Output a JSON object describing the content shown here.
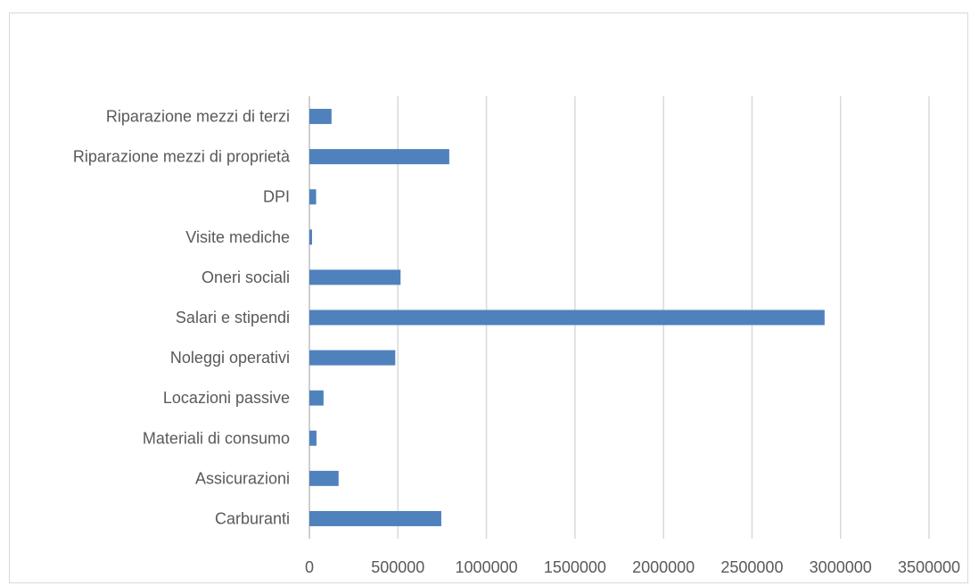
{
  "chart_data": {
    "type": "bar",
    "orientation": "horizontal",
    "categories": [
      "Carburanti",
      "Assicurazioni",
      "Materiali di consumo",
      "Locazioni passive",
      "Noleggi operativi",
      "Salari e stipendi",
      "Oneri sociali",
      "Visite mediche",
      "DPI",
      "Riparazione mezzi di proprietà",
      "Riparazione mezzi di terzi"
    ],
    "values": [
      745000,
      165000,
      40000,
      80000,
      485000,
      2910000,
      515000,
      15000,
      38000,
      790000,
      125000
    ],
    "xlim": [
      0,
      3500000
    ],
    "xticks": [
      "0",
      "500000",
      "1000000",
      "1500000",
      "2000000",
      "2500000",
      "3000000",
      "3500000"
    ],
    "xtick_values": [
      0,
      500000,
      1000000,
      1500000,
      2000000,
      2500000,
      3000000,
      3500000
    ],
    "title": "",
    "xlabel": "",
    "ylabel": "",
    "grid": "vertical",
    "bar_color": "#4f81bd",
    "gridline_color": "#d9d9d9"
  }
}
